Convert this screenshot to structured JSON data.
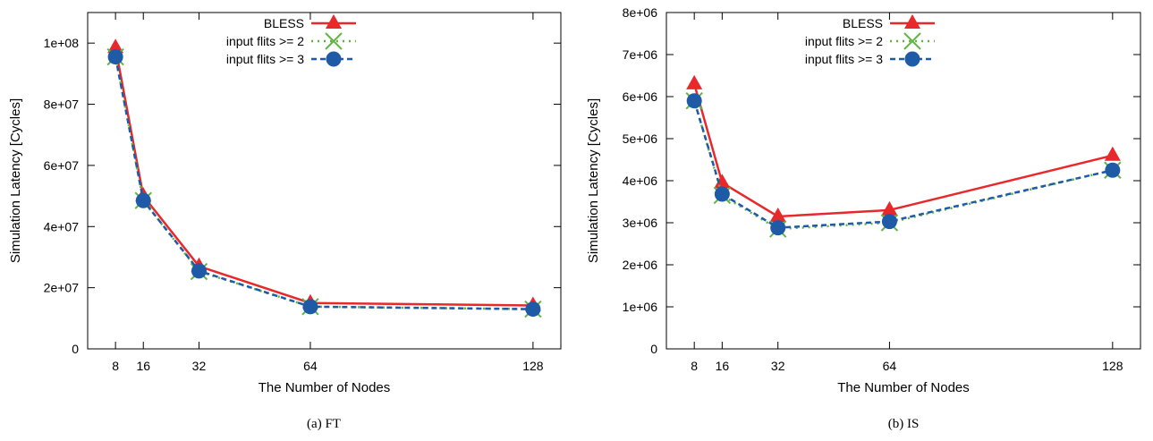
{
  "chart_data": [
    {
      "type": "line",
      "caption": "(a)  FT",
      "xlabel": "The Number of Nodes",
      "ylabel": "Simulation Latency [Cycles]",
      "x": [
        8,
        16,
        32,
        64,
        128
      ],
      "xlim": [
        0,
        136
      ],
      "ylim": [
        0,
        110000000
      ],
      "yticks": [
        0,
        20000000,
        40000000,
        60000000,
        80000000,
        100000000
      ],
      "ytick_labels": [
        "0",
        "2e+07",
        "4e+07",
        "6e+07",
        "8e+07",
        "1e+08"
      ],
      "legend_position": "top-center",
      "series": [
        {
          "name": "BLESS",
          "color": "#e8282b",
          "marker": "triangle",
          "dash": "solid",
          "values": [
            98500000,
            50000000,
            27000000,
            15000000,
            14200000
          ]
        },
        {
          "name": "input flits >= 2",
          "color": "#5fb63f",
          "marker": "x",
          "dash": "dotted",
          "values": [
            95500000,
            48500000,
            25300000,
            13800000,
            13000000
          ]
        },
        {
          "name": "input flits >= 3",
          "color": "#1f5aa6",
          "marker": "circle",
          "dash": "dashed",
          "values": [
            95500000,
            48500000,
            25500000,
            13800000,
            13000000
          ]
        }
      ]
    },
    {
      "type": "line",
      "caption": "(b)  IS",
      "xlabel": "The Number of Nodes",
      "ylabel": "Simulation Latency [Cycles]",
      "x": [
        8,
        16,
        32,
        64,
        128
      ],
      "xlim": [
        0,
        136
      ],
      "ylim": [
        0,
        8000000
      ],
      "yticks": [
        0,
        1000000,
        2000000,
        3000000,
        4000000,
        5000000,
        6000000,
        7000000,
        8000000
      ],
      "ytick_labels": [
        "0",
        "1e+06",
        "2e+06",
        "3e+06",
        "4e+06",
        "5e+06",
        "6e+06",
        "7e+06",
        "8e+06"
      ],
      "legend_position": "top-center",
      "series": [
        {
          "name": "BLESS",
          "color": "#e8282b",
          "marker": "triangle",
          "dash": "solid",
          "values": [
            6300000,
            3950000,
            3150000,
            3300000,
            4600000
          ]
        },
        {
          "name": "input flits >= 2",
          "color": "#5fb63f",
          "marker": "x",
          "dash": "dotted",
          "values": [
            5900000,
            3650000,
            2850000,
            3000000,
            4250000
          ]
        },
        {
          "name": "input flits >= 3",
          "color": "#1f5aa6",
          "marker": "circle",
          "dash": "dashed",
          "values": [
            5900000,
            3680000,
            2880000,
            3030000,
            4250000
          ]
        }
      ]
    }
  ]
}
